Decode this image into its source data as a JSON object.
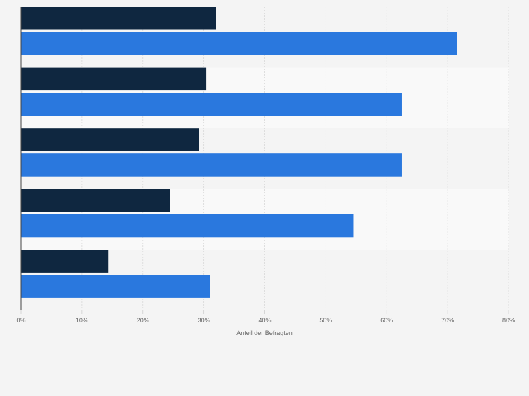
{
  "chart_data": {
    "type": "bar",
    "orientation": "horizontal",
    "title": "",
    "xlabel": "Anteil der Befragten",
    "ylabel": "",
    "categories": [
      "",
      "",
      "",
      "",
      ""
    ],
    "series": [
      {
        "name": "",
        "color": "#0f2740",
        "values": [
          32,
          30.4,
          29.2,
          24.5,
          14.3
        ]
      },
      {
        "name": "",
        "color": "#2a78de",
        "values": [
          71.5,
          62.5,
          62.5,
          54.5,
          31
        ]
      }
    ],
    "xlim": [
      0,
      80
    ],
    "xticks": [
      0,
      10,
      20,
      30,
      40,
      50,
      60,
      70,
      80
    ],
    "xtick_labels": [
      "0%",
      "10%",
      "20%",
      "30%",
      "40%",
      "50%",
      "60%",
      "70%",
      "80%"
    ],
    "grid": true
  }
}
